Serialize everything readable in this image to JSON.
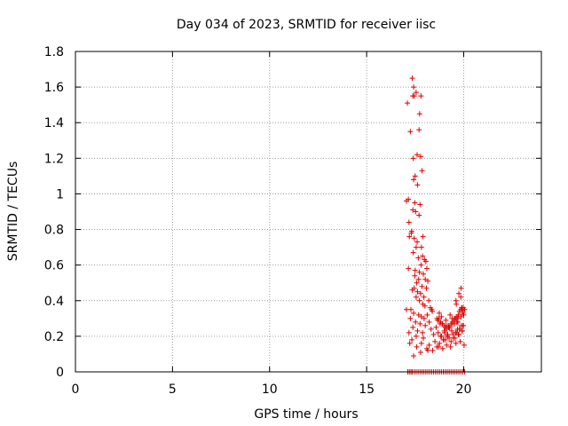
{
  "chart_data": {
    "type": "scatter",
    "title": "Day 034 of 2023, SRMTID for receiver iisc",
    "xlabel": "GPS time / hours",
    "ylabel": "SRMTID / TECUs",
    "xlim": [
      0,
      24
    ],
    "ylim": [
      0,
      1.8
    ],
    "xticks": [
      0,
      5,
      10,
      15,
      20
    ],
    "yticks": [
      0,
      0.2,
      0.4,
      0.6,
      0.8,
      1,
      1.2,
      1.4,
      1.6,
      1.8
    ],
    "ytick_labels": [
      "0",
      "0.2",
      "0.4",
      "0.6",
      "0.8",
      "1",
      "1.2",
      "1.4",
      "1.6",
      "1.8"
    ],
    "grid": true,
    "marker": "+",
    "colors": {
      "series": "#dd0000",
      "grid": "#a0a0a0",
      "axes": "#000000"
    },
    "series": [
      {
        "name": "SRMTID",
        "x": [
          17.35,
          17.42,
          17.38,
          17.8,
          17.55,
          17.1,
          17.45,
          17.73,
          17.7,
          17.25,
          17.6,
          17.78,
          17.4,
          17.85,
          17.5,
          17.42,
          17.62,
          17.05,
          17.48,
          17.15,
          17.75,
          17.38,
          17.52,
          17.7,
          17.18,
          17.32,
          17.3,
          17.2,
          17.45,
          17.9,
          17.6,
          17.55,
          17.82,
          17.88,
          17.98,
          18.05,
          17.4,
          17.66,
          17.8,
          18.1,
          17.5,
          17.72,
          17.92,
          18.02,
          17.15,
          17.48,
          17.58,
          17.68,
          18.15,
          17.85,
          18.08,
          17.45,
          17.62,
          17.78,
          17.95,
          18.2,
          17.35,
          17.55,
          17.72,
          17.9,
          18.0,
          18.28,
          18.35,
          17.28,
          17.42,
          17.68,
          17.82,
          17.96,
          18.12,
          18.38,
          17.25,
          17.52,
          17.75,
          18.02,
          18.22,
          17.38,
          17.62,
          17.88,
          18.32,
          17.18,
          17.55,
          17.92,
          18.45,
          17.33,
          17.82,
          18.22,
          18.52,
          17.22,
          17.58,
          18.1,
          18.4,
          18.62,
          17.42,
          17.78,
          18.15,
          18.72,
          18.82,
          18.9,
          18.98,
          19.05,
          19.12,
          19.2,
          19.28,
          19.35,
          19.42,
          19.5,
          19.58,
          19.65,
          19.72,
          19.78,
          19.85,
          19.9,
          19.95,
          20.0,
          20.05,
          18.68,
          18.86,
          19.05,
          19.25,
          19.45,
          19.62,
          19.8,
          19.98,
          18.75,
          18.95,
          19.15,
          19.35,
          19.55,
          19.75,
          19.92,
          18.58,
          18.78,
          19.0,
          19.22,
          19.42,
          19.68,
          19.88,
          18.62,
          18.85,
          19.08,
          19.3,
          19.52,
          19.7,
          19.95,
          18.7,
          18.92,
          19.12,
          19.32,
          19.6,
          19.82,
          20.02,
          18.8,
          19.02,
          19.18,
          19.38,
          19.58,
          19.78,
          19.96,
          18.66,
          18.9,
          19.1,
          19.4,
          19.65,
          19.86,
          18.74,
          18.96,
          19.16,
          19.46,
          19.72,
          19.92,
          19.25,
          19.52,
          19.86,
          19.62,
          19.75,
          19.6,
          19.85,
          19.9,
          19.98,
          19.7,
          17.05,
          17.12,
          17.2,
          17.28,
          17.35,
          17.45,
          17.55,
          17.65,
          17.75,
          17.85,
          17.95,
          18.05,
          18.15,
          18.25,
          18.35,
          18.45,
          18.55,
          18.65,
          18.75,
          18.85,
          18.95,
          19.05,
          19.15,
          19.25,
          19.35,
          19.45,
          19.55,
          19.65,
          19.75,
          19.85,
          19.95,
          20.05
        ],
        "y": [
          1.65,
          1.6,
          1.55,
          1.55,
          1.57,
          1.51,
          1.55,
          1.45,
          1.36,
          1.35,
          1.22,
          1.21,
          1.2,
          1.13,
          1.1,
          1.08,
          1.05,
          0.96,
          0.95,
          0.97,
          0.94,
          0.91,
          0.9,
          0.88,
          0.84,
          0.79,
          0.78,
          0.76,
          0.75,
          0.76,
          0.73,
          0.7,
          0.7,
          0.65,
          0.63,
          0.62,
          0.67,
          0.64,
          0.6,
          0.58,
          0.57,
          0.56,
          0.55,
          0.52,
          0.58,
          0.54,
          0.5,
          0.52,
          0.51,
          0.48,
          0.47,
          0.47,
          0.45,
          0.44,
          0.42,
          0.4,
          0.46,
          0.42,
          0.4,
          0.38,
          0.37,
          0.36,
          0.35,
          0.35,
          0.33,
          0.32,
          0.31,
          0.3,
          0.32,
          0.34,
          0.3,
          0.28,
          0.27,
          0.26,
          0.28,
          0.25,
          0.23,
          0.22,
          0.24,
          0.22,
          0.2,
          0.19,
          0.21,
          0.18,
          0.16,
          0.15,
          0.17,
          0.16,
          0.14,
          0.13,
          0.12,
          0.14,
          0.09,
          0.11,
          0.12,
          0.3,
          0.28,
          0.27,
          0.26,
          0.25,
          0.24,
          0.26,
          0.25,
          0.27,
          0.28,
          0.29,
          0.3,
          0.31,
          0.32,
          0.34,
          0.35,
          0.36,
          0.34,
          0.32,
          0.35,
          0.22,
          0.2,
          0.18,
          0.19,
          0.21,
          0.22,
          0.24,
          0.26,
          0.16,
          0.18,
          0.2,
          0.17,
          0.19,
          0.21,
          0.23,
          0.25,
          0.27,
          0.23,
          0.25,
          0.27,
          0.24,
          0.26,
          0.3,
          0.31,
          0.29,
          0.32,
          0.3,
          0.28,
          0.33,
          0.14,
          0.13,
          0.15,
          0.14,
          0.16,
          0.17,
          0.15,
          0.2,
          0.22,
          0.21,
          0.23,
          0.22,
          0.24,
          0.26,
          0.29,
          0.27,
          0.26,
          0.3,
          0.28,
          0.31,
          0.33,
          0.18,
          0.2,
          0.19,
          0.21,
          0.23,
          0.25,
          0.27,
          0.47,
          0.38,
          0.44,
          0.4,
          0.42,
          0.36,
          0.36,
          0.3,
          0.35,
          0,
          0,
          0,
          0,
          0,
          0,
          0,
          0,
          0,
          0,
          0,
          0,
          0,
          0,
          0,
          0,
          0,
          0,
          0,
          0,
          0,
          0,
          0,
          0,
          0,
          0,
          0,
          0,
          0,
          0,
          0
        ]
      }
    ]
  }
}
